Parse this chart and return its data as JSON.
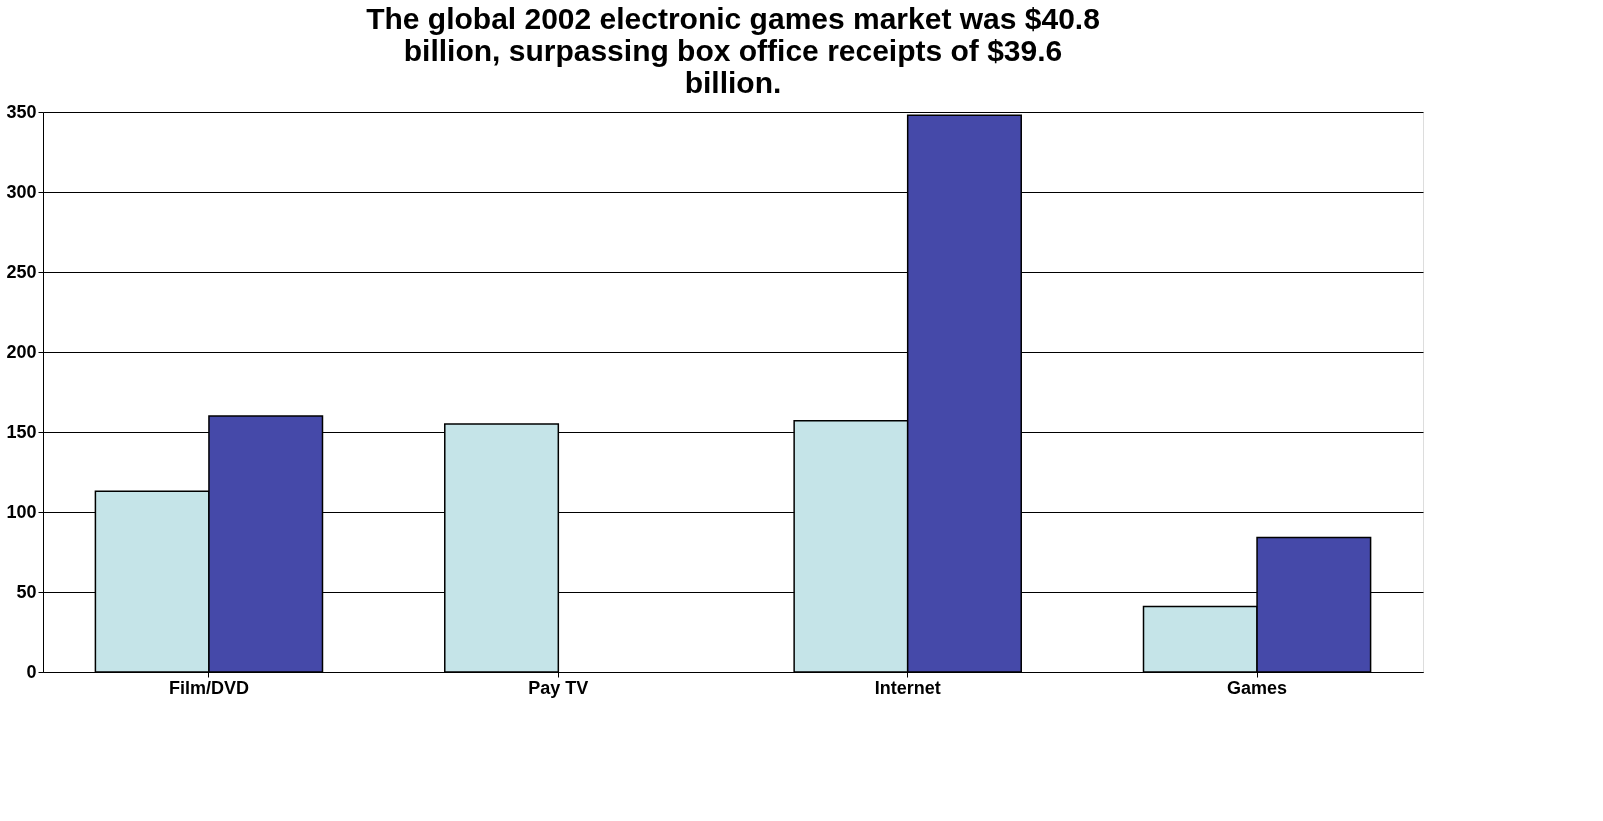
{
  "chart_data": {
    "type": "bar",
    "categories": [
      "Film/DVD",
      "Pay TV",
      "Internet",
      "Games"
    ],
    "series": [
      {
        "color": "#c5e4e8",
        "values": [
          113,
          155,
          157,
          41
        ]
      },
      {
        "color": "#4549a9",
        "values": [
          160,
          null,
          348,
          84
        ]
      }
    ],
    "ylim": [
      0,
      350
    ],
    "yticks": [
      0,
      50,
      100,
      150,
      200,
      250,
      300,
      350
    ],
    "grid": "y",
    "legend": false,
    "annotations": [
      "The global 2002 electronic games market was $40.8 billion, surpassing box office receipts of $39.6 billion."
    ]
  }
}
